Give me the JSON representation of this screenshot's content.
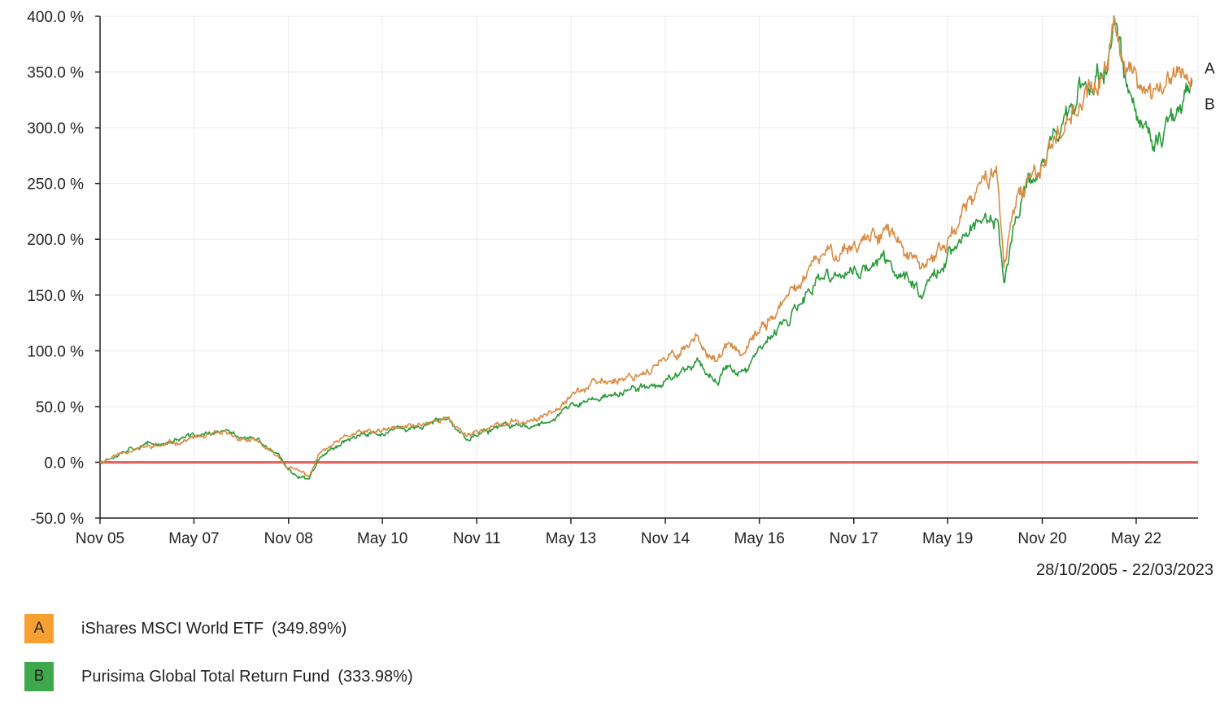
{
  "chart_data": {
    "type": "line",
    "title": "",
    "xlabel": "",
    "ylabel": "",
    "date_range": "28/10/2005 - 22/03/2023",
    "x_tick_labels": [
      "Nov 05",
      "May 07",
      "Nov 08",
      "May 10",
      "Nov 11",
      "May 13",
      "Nov 14",
      "May 16",
      "Nov 17",
      "May 19",
      "Nov 20",
      "May 22"
    ],
    "y_tick_labels": [
      "400.0 %",
      "350.0 %",
      "300.0 %",
      "250.0 %",
      "200.0 %",
      "150.0 %",
      "100.0 %",
      "50.0 %",
      "0.0 %",
      "-50.0 %"
    ],
    "ylim": [
      -50,
      400
    ],
    "grid": true,
    "baseline_value": 0,
    "legend_placement": "bottom-left",
    "x": [
      "2005-10-28",
      "2006-05-01",
      "2006-11-01",
      "2007-05-01",
      "2007-11-01",
      "2008-05-01",
      "2008-09-01",
      "2008-11-01",
      "2009-03-01",
      "2009-05-01",
      "2009-11-01",
      "2010-05-01",
      "2010-11-01",
      "2011-05-01",
      "2011-09-01",
      "2011-11-01",
      "2012-05-01",
      "2012-11-01",
      "2013-05-01",
      "2013-11-01",
      "2014-05-01",
      "2014-11-01",
      "2015-05-01",
      "2015-09-01",
      "2015-11-01",
      "2016-02-01",
      "2016-05-01",
      "2016-11-01",
      "2017-05-01",
      "2017-11-01",
      "2018-05-01",
      "2018-12-01",
      "2019-05-01",
      "2019-11-01",
      "2020-02-15",
      "2020-03-23",
      "2020-06-01",
      "2020-11-01",
      "2021-05-01",
      "2021-11-01",
      "2021-12-31",
      "2022-03-01",
      "2022-06-15",
      "2022-09-30",
      "2022-11-01",
      "2023-01-01",
      "2023-03-22"
    ],
    "series": [
      {
        "name": "iShares MSCI World ETF",
        "label": "A",
        "final_return": "(349.89%)",
        "color": "#d98d44",
        "legend_color": "#f5a031",
        "values": [
          0,
          12,
          15,
          22,
          25,
          18,
          5,
          -5,
          -12,
          8,
          25,
          28,
          33,
          40,
          25,
          28,
          35,
          38,
          62,
          72,
          78,
          90,
          112,
          90,
          105,
          95,
          118,
          150,
          185,
          195,
          212,
          170,
          200,
          245,
          265,
          175,
          230,
          270,
          320,
          345,
          395,
          355,
          335,
          330,
          345,
          350,
          350
        ]
      },
      {
        "name": "Purisima Global Total Return Fund",
        "label": "B",
        "final_return": "(333.98%)",
        "color": "#2a9a3a",
        "legend_color": "#3fa84b",
        "values": [
          0,
          14,
          17,
          24,
          27,
          20,
          6,
          -8,
          -15,
          6,
          23,
          26,
          31,
          38,
          22,
          26,
          32,
          34,
          50,
          58,
          65,
          72,
          92,
          72,
          88,
          78,
          100,
          130,
          165,
          170,
          180,
          155,
          185,
          218,
          215,
          155,
          225,
          270,
          325,
          350,
          398,
          340,
          290,
          290,
          310,
          320,
          334
        ]
      }
    ]
  }
}
